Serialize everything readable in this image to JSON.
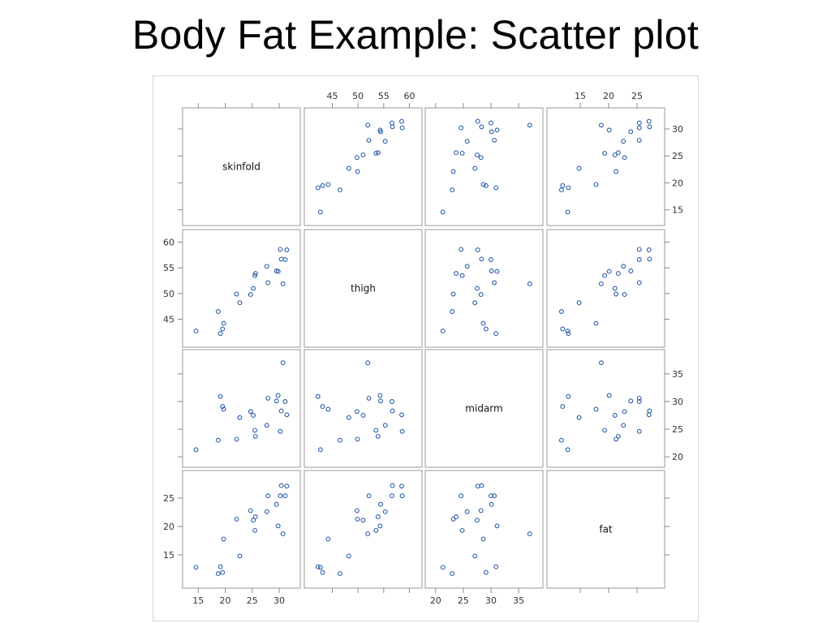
{
  "slide": {
    "title": "Body Fat Example: Scatter plot"
  },
  "chart_data": {
    "type": "scatter",
    "subtype": "scatter-matrix",
    "variables": [
      "skinfold",
      "thigh",
      "midarm",
      "fat"
    ],
    "axes": {
      "skinfold": {
        "range": [
          13,
          33
        ],
        "ticks": [
          15,
          20,
          25,
          30
        ]
      },
      "thigh": {
        "range": [
          40.5,
          61.5
        ],
        "ticks": [
          45,
          50,
          55,
          60
        ]
      },
      "midarm": {
        "range": [
          19,
          38.5
        ],
        "ticks": [
          20,
          25,
          30,
          35
        ]
      },
      "fat": {
        "range": [
          10,
          29
        ],
        "ticks": [
          15,
          20,
          25
        ]
      }
    },
    "tick_labels": {
      "top": {
        "col2": [
          "45",
          "50",
          "55",
          "60"
        ],
        "col4": [
          "15",
          "20",
          "25"
        ]
      },
      "right": {
        "row1": [
          "30",
          "25",
          "20",
          "15"
        ],
        "row3": [
          "35",
          "30",
          "25",
          "20"
        ]
      },
      "left": {
        "row2": [
          "60",
          "55",
          "50",
          "45"
        ],
        "row4": [
          "25",
          "20",
          "15"
        ]
      },
      "bottom": {
        "col1": [
          "15",
          "20",
          "25",
          "30"
        ],
        "col3": [
          "20",
          "25",
          "30",
          "35"
        ]
      }
    },
    "marker": {
      "shape": "open-circle",
      "color": "#2a5da8"
    },
    "grid": false,
    "data": [
      {
        "skinfold": 19.5,
        "thigh": 43.1,
        "midarm": 29.1,
        "fat": 11.9
      },
      {
        "skinfold": 24.7,
        "thigh": 49.8,
        "midarm": 28.2,
        "fat": 22.8
      },
      {
        "skinfold": 30.7,
        "thigh": 51.9,
        "midarm": 37.0,
        "fat": 18.7
      },
      {
        "skinfold": 29.8,
        "thigh": 54.3,
        "midarm": 31.1,
        "fat": 20.1
      },
      {
        "skinfold": 19.1,
        "thigh": 42.2,
        "midarm": 30.9,
        "fat": 12.9
      },
      {
        "skinfold": 25.6,
        "thigh": 53.9,
        "midarm": 23.7,
        "fat": 21.7
      },
      {
        "skinfold": 31.4,
        "thigh": 58.5,
        "midarm": 27.6,
        "fat": 27.1
      },
      {
        "skinfold": 27.9,
        "thigh": 52.1,
        "midarm": 30.6,
        "fat": 25.4
      },
      {
        "skinfold": 22.1,
        "thigh": 49.9,
        "midarm": 23.2,
        "fat": 21.3
      },
      {
        "skinfold": 25.5,
        "thigh": 53.5,
        "midarm": 24.8,
        "fat": 19.3
      },
      {
        "skinfold": 31.1,
        "thigh": 56.6,
        "midarm": 30.0,
        "fat": 25.4
      },
      {
        "skinfold": 30.4,
        "thigh": 56.7,
        "midarm": 28.3,
        "fat": 27.2
      },
      {
        "skinfold": 18.7,
        "thigh": 46.5,
        "midarm": 23.0,
        "fat": 11.7
      },
      {
        "skinfold": 19.7,
        "thigh": 44.2,
        "midarm": 28.6,
        "fat": 17.8
      },
      {
        "skinfold": 14.6,
        "thigh": 42.7,
        "midarm": 21.3,
        "fat": 12.8
      },
      {
        "skinfold": 29.5,
        "thigh": 54.4,
        "midarm": 30.1,
        "fat": 23.9
      },
      {
        "skinfold": 27.7,
        "thigh": 55.3,
        "midarm": 25.7,
        "fat": 22.6
      },
      {
        "skinfold": 30.2,
        "thigh": 58.6,
        "midarm": 24.6,
        "fat": 25.4
      },
      {
        "skinfold": 22.7,
        "thigh": 48.2,
        "midarm": 27.1,
        "fat": 14.8
      },
      {
        "skinfold": 25.2,
        "thigh": 51.0,
        "midarm": 27.5,
        "fat": 21.1
      }
    ]
  }
}
